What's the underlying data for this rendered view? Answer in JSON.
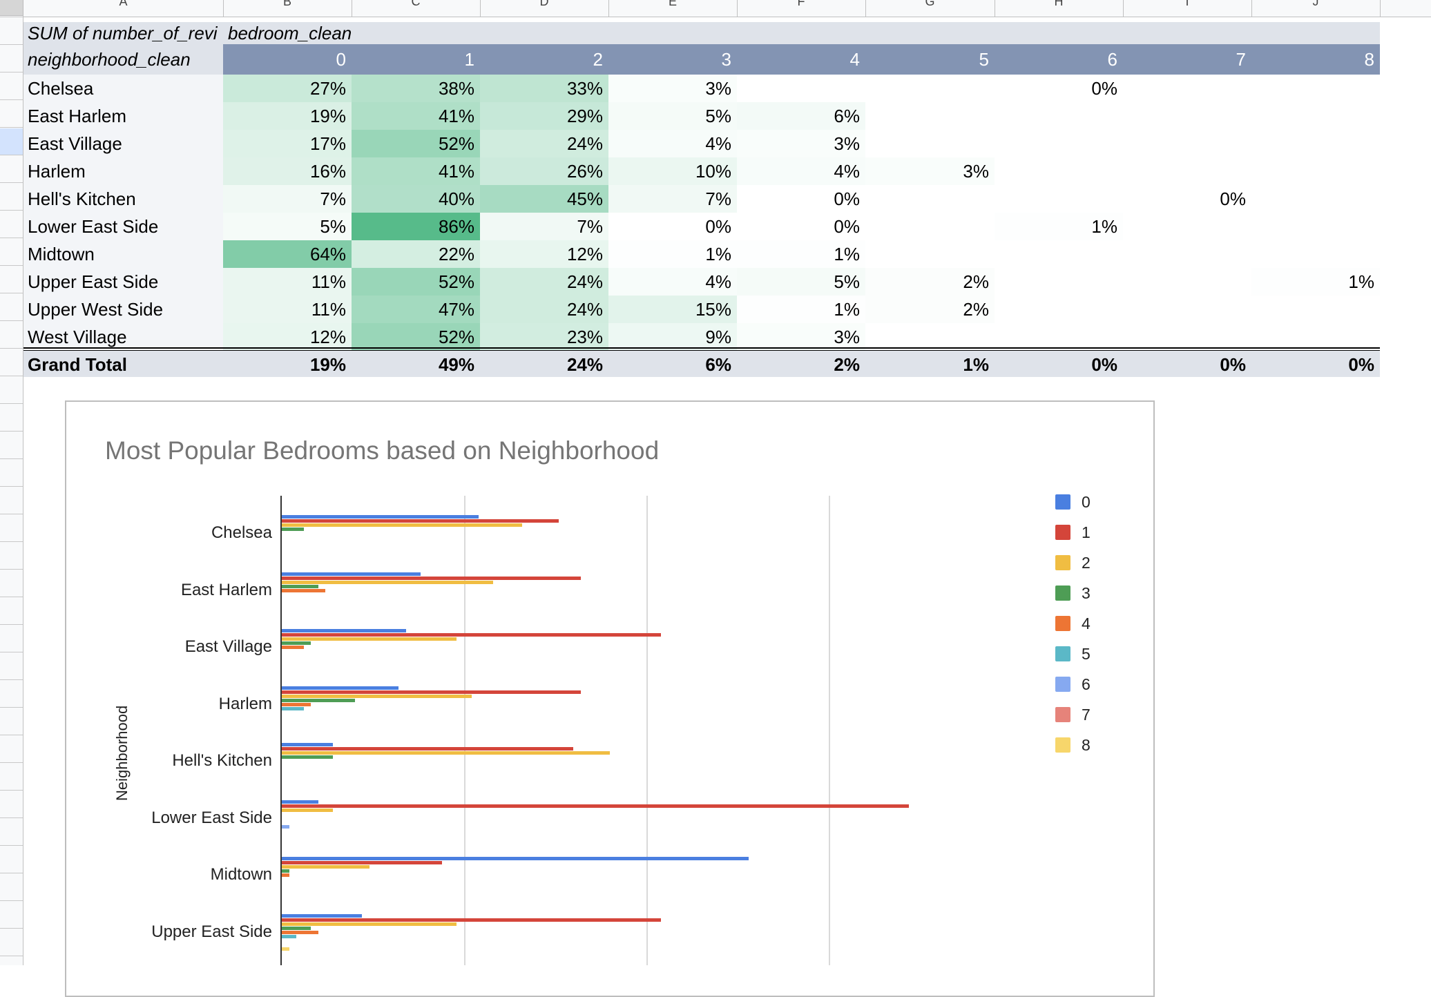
{
  "sheet": {
    "column_letters": [
      "A",
      "B",
      "C",
      "D",
      "E",
      "F",
      "G",
      "H",
      "I",
      "J"
    ]
  },
  "pivot": {
    "title_measure": "SUM of number_of_revi",
    "title_column_field": "bedroom_clean",
    "row_field": "neighborhood_clean",
    "columns": [
      "0",
      "1",
      "2",
      "3",
      "4",
      "5",
      "6",
      "7",
      "8"
    ],
    "rows": [
      {
        "name": "Chelsea",
        "values": [
          "27%",
          "38%",
          "33%",
          "3%",
          "",
          "",
          "0%",
          "",
          ""
        ]
      },
      {
        "name": "East Harlem",
        "values": [
          "19%",
          "41%",
          "29%",
          "5%",
          "6%",
          "",
          "",
          "",
          ""
        ]
      },
      {
        "name": "East Village",
        "values": [
          "17%",
          "52%",
          "24%",
          "4%",
          "3%",
          "",
          "",
          "",
          ""
        ]
      },
      {
        "name": "Harlem",
        "values": [
          "16%",
          "41%",
          "26%",
          "10%",
          "4%",
          "3%",
          "",
          "",
          ""
        ]
      },
      {
        "name": "Hell's Kitchen",
        "values": [
          "7%",
          "40%",
          "45%",
          "7%",
          "0%",
          "",
          "",
          "0%",
          ""
        ]
      },
      {
        "name": "Lower East Side",
        "values": [
          "5%",
          "86%",
          "7%",
          "0%",
          "0%",
          "",
          "1%",
          "",
          ""
        ]
      },
      {
        "name": "Midtown",
        "values": [
          "64%",
          "22%",
          "12%",
          "1%",
          "1%",
          "",
          "",
          "",
          ""
        ]
      },
      {
        "name": "Upper East Side",
        "values": [
          "11%",
          "52%",
          "24%",
          "4%",
          "5%",
          "2%",
          "",
          "",
          "1%"
        ]
      },
      {
        "name": "Upper West Side",
        "values": [
          "11%",
          "47%",
          "24%",
          "15%",
          "1%",
          "2%",
          "",
          "",
          ""
        ]
      },
      {
        "name": "West Village",
        "values": [
          "12%",
          "52%",
          "23%",
          "9%",
          "3%",
          "",
          "",
          "",
          ""
        ]
      }
    ],
    "grand_total": {
      "label": "Grand Total",
      "values": [
        "19%",
        "49%",
        "24%",
        "6%",
        "2%",
        "1%",
        "0%",
        "0%",
        "0%"
      ]
    }
  },
  "chart_data": {
    "type": "bar",
    "orientation": "horizontal",
    "title": "Most Popular Bedrooms based on Neighborhood",
    "ylabel": "Neighborhood",
    "xlabel": "",
    "legend_position": "right",
    "categories": [
      "Chelsea",
      "East Harlem",
      "East Village",
      "Harlem",
      "Hell's Kitchen",
      "Lower East Side",
      "Midtown",
      "Upper East Side"
    ],
    "series": [
      {
        "name": "0",
        "color": "#4a7fe0",
        "values": [
          27,
          19,
          17,
          16,
          7,
          5,
          64,
          11
        ]
      },
      {
        "name": "1",
        "color": "#d4453a",
        "values": [
          38,
          41,
          52,
          41,
          40,
          86,
          22,
          52
        ]
      },
      {
        "name": "2",
        "color": "#f0bd42",
        "values": [
          33,
          29,
          24,
          26,
          45,
          7,
          12,
          24
        ]
      },
      {
        "name": "3",
        "color": "#4e9d55",
        "values": [
          3,
          5,
          4,
          10,
          7,
          0,
          1,
          4
        ]
      },
      {
        "name": "4",
        "color": "#ed7534",
        "values": [
          0,
          6,
          3,
          4,
          0,
          0,
          1,
          5
        ]
      },
      {
        "name": "5",
        "color": "#5bb8c7",
        "values": [
          0,
          0,
          0,
          3,
          0,
          0,
          0,
          2
        ]
      },
      {
        "name": "6",
        "color": "#86a9f0",
        "values": [
          0,
          0,
          0,
          0,
          0,
          1,
          0,
          0
        ]
      },
      {
        "name": "7",
        "color": "#e6837a",
        "values": [
          0,
          0,
          0,
          0,
          0,
          0,
          0,
          0
        ]
      },
      {
        "name": "8",
        "color": "#f7d66b",
        "values": [
          0,
          0,
          0,
          0,
          0,
          0,
          0,
          1
        ]
      }
    ]
  }
}
